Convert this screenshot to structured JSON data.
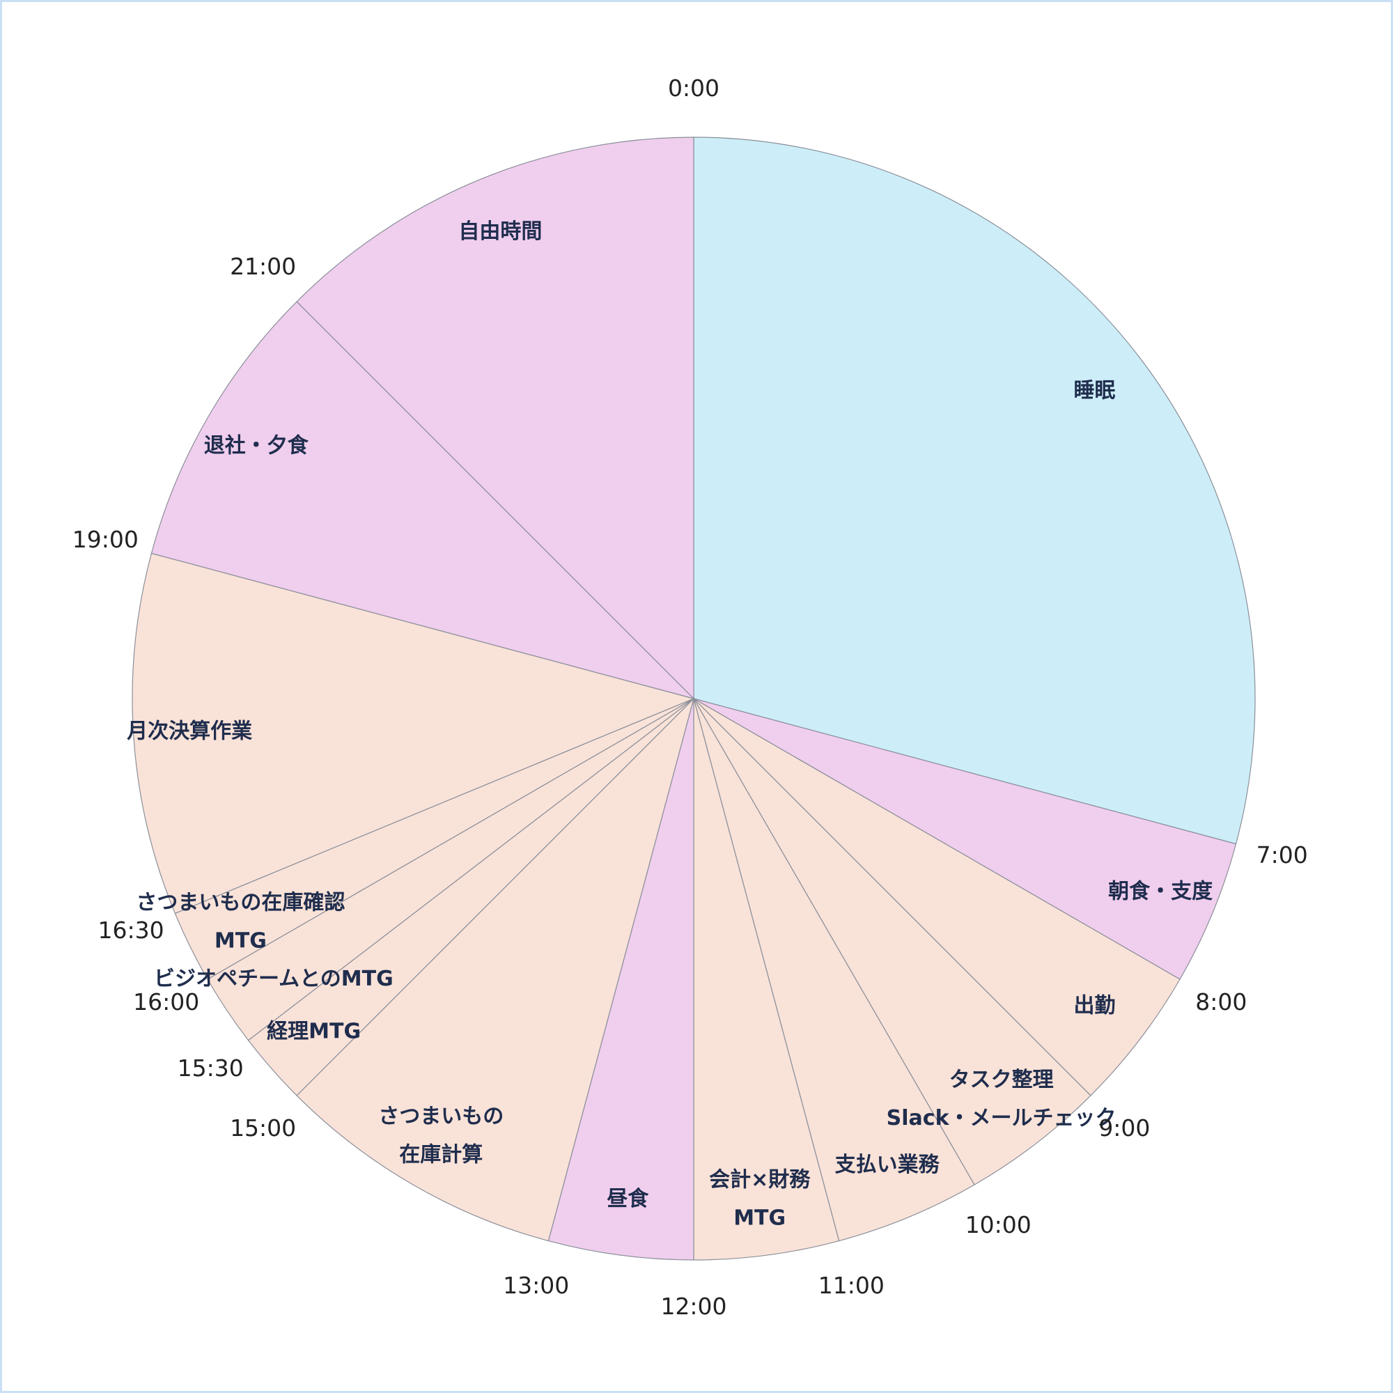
{
  "chart_data": {
    "type": "pie",
    "categories": [
      [
        "睡眠"
      ],
      [
        "朝食・支度"
      ],
      [
        "出勤"
      ],
      [
        "タスク整理",
        "Slack・メールチェック"
      ],
      [
        "支払い業務"
      ],
      [
        "会計×財務",
        "MTG"
      ],
      [
        "昼食"
      ],
      [
        "さつまいもの",
        "在庫計算"
      ],
      [
        "経理MTG"
      ],
      [
        "ビジオペチームとのMTG"
      ],
      [
        "さつまいもの在庫確認",
        "MTG"
      ],
      [
        "月次決算作業"
      ],
      [
        "退社・夕食"
      ],
      [
        "自由時間"
      ]
    ],
    "values": [
      7,
      1,
      1,
      1,
      1,
      1,
      1,
      2,
      0.5,
      0.5,
      0.5,
      2.5,
      2,
      3
    ],
    "colors": [
      "#cdeef9",
      "#f0ceee",
      "#f9e2d8",
      "#f9e2d8",
      "#f9e2d8",
      "#f9e2d8",
      "#f0ceee",
      "#f9e2d8",
      "#f9e2d8",
      "#f9e2d8",
      "#f9e2d8",
      "#f9e2d8",
      "#f0ceee",
      "#f0ceee"
    ],
    "xticks": [
      {
        "value": 0,
        "label": "0:00"
      },
      {
        "value": 7,
        "label": "7:00"
      },
      {
        "value": 8,
        "label": "8:00"
      },
      {
        "value": 9,
        "label": "9:00"
      },
      {
        "value": 10,
        "label": "10:00"
      },
      {
        "value": 11,
        "label": "11:00"
      },
      {
        "value": 12,
        "label": "12:00"
      },
      {
        "value": 13,
        "label": "13:00"
      },
      {
        "value": 15,
        "label": "15:00"
      },
      {
        "value": 15.5,
        "label": "15:30"
      },
      {
        "value": 16,
        "label": "16:00"
      },
      {
        "value": 16.5,
        "label": "16:30"
      },
      {
        "value": 19,
        "label": "19:00"
      },
      {
        "value": 21,
        "label": "21:00"
      }
    ]
  }
}
